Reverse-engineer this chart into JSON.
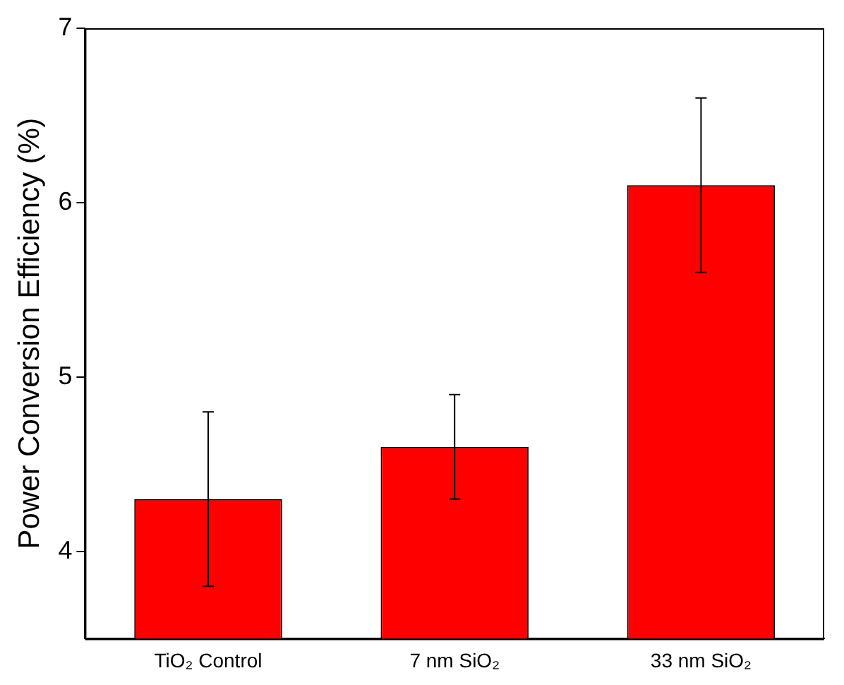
{
  "chart_data": {
    "type": "bar",
    "ylabel": "Power Conversion Efficiency (%)",
    "categories": [
      "TiO₂ Control",
      "7 nm SiO₂",
      "33 nm SiO₂"
    ],
    "values": [
      4.3,
      4.6,
      6.1
    ],
    "errors": [
      0.5,
      0.3,
      0.5
    ],
    "color": "#ff0000",
    "ylim": [
      3.5,
      7
    ],
    "yticks": [
      4,
      5,
      6,
      7
    ],
    "grid": false,
    "legend": false
  }
}
